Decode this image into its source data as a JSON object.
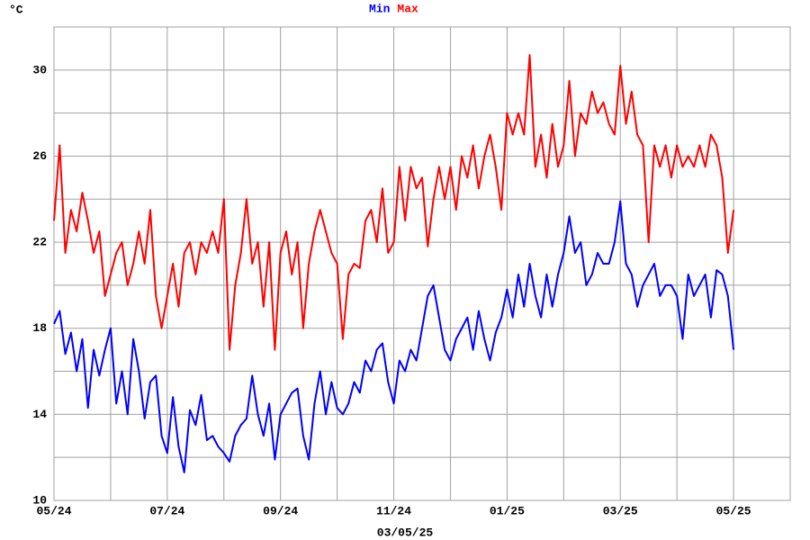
{
  "chart_data": {
    "type": "line",
    "y_label": "°C",
    "footer": "03/05/25",
    "x": [
      0,
      0.1,
      0.2,
      0.3,
      0.4,
      0.5,
      0.6,
      0.7,
      0.8,
      0.9,
      1,
      1.1,
      1.2,
      1.3,
      1.4,
      1.5,
      1.6,
      1.7,
      1.8,
      1.9,
      2,
      2.1,
      2.2,
      2.3,
      2.4,
      2.5,
      2.6,
      2.7,
      2.8,
      2.9,
      3,
      3.1,
      3.2,
      3.3,
      3.4,
      3.5,
      3.6,
      3.7,
      3.8,
      3.9,
      4,
      4.1,
      4.2,
      4.3,
      4.4,
      4.5,
      4.6,
      4.7,
      4.8,
      4.9,
      5,
      5.1,
      5.2,
      5.3,
      5.4,
      5.5,
      5.6,
      5.7,
      5.8,
      5.9,
      6,
      6.1,
      6.2,
      6.3,
      6.4,
      6.5,
      6.6,
      6.7,
      6.8,
      6.9,
      7,
      7.1,
      7.2,
      7.3,
      7.4,
      7.5,
      7.6,
      7.7,
      7.8,
      7.9,
      8,
      8.1,
      8.2,
      8.3,
      8.4,
      8.5,
      8.6,
      8.7,
      8.8,
      8.9,
      9,
      9.1,
      9.2,
      9.3,
      9.4,
      9.5,
      9.6,
      9.7,
      9.8,
      9.9,
      10,
      10.1,
      10.2,
      10.3,
      10.4,
      10.5,
      10.6,
      10.7,
      10.8,
      10.9,
      11,
      11.1,
      11.2,
      11.3,
      11.4,
      11.5,
      11.6,
      11.7,
      11.8,
      11.9,
      12
    ],
    "series": [
      {
        "name": "Min",
        "color": "#0000ff",
        "values": [
          18.2,
          18.8,
          16.8,
          17.8,
          16.0,
          17.5,
          14.3,
          17.0,
          15.8,
          17.0,
          18.0,
          14.5,
          16.0,
          14.0,
          17.5,
          16.0,
          13.8,
          15.5,
          15.8,
          13.0,
          12.2,
          14.8,
          12.5,
          11.3,
          14.2,
          13.5,
          14.9,
          12.8,
          13.0,
          12.5,
          12.2,
          11.8,
          13.0,
          13.5,
          13.8,
          15.8,
          14.0,
          13.0,
          14.5,
          11.9,
          14.0,
          14.5,
          15.0,
          15.2,
          13.0,
          11.9,
          14.5,
          16.0,
          14.0,
          15.5,
          14.3,
          14.0,
          14.5,
          15.5,
          15.0,
          16.5,
          16.0,
          17.0,
          17.3,
          15.5,
          14.5,
          16.5,
          16.0,
          17.0,
          16.5,
          18.0,
          19.5,
          20.0,
          18.5,
          17.0,
          16.5,
          17.5,
          18.0,
          18.5,
          17.0,
          18.8,
          17.5,
          16.5,
          17.8,
          18.5,
          19.8,
          18.5,
          20.5,
          19.0,
          21.0,
          19.5,
          18.5,
          20.5,
          19.0,
          20.5,
          21.5,
          23.2,
          21.5,
          22.0,
          20.0,
          20.5,
          21.5,
          21.0,
          21.0,
          22.0,
          23.9,
          21.0,
          20.5,
          19.0,
          20.0,
          20.5,
          21.0,
          19.5,
          20.0,
          20.0,
          19.5,
          17.5,
          20.5,
          19.5,
          20.0,
          20.5,
          18.5,
          20.7,
          20.5,
          19.5,
          17.0
        ]
      },
      {
        "name": "Max",
        "color": "#ff0000",
        "values": [
          23.0,
          26.5,
          21.5,
          23.5,
          22.5,
          24.3,
          23.0,
          21.5,
          22.5,
          19.5,
          20.5,
          21.5,
          22.0,
          20.0,
          21.0,
          22.5,
          21.0,
          23.5,
          19.5,
          18.0,
          19.5,
          21.0,
          19.0,
          21.5,
          22.0,
          20.5,
          22.0,
          21.5,
          22.5,
          21.5,
          24.0,
          17.0,
          20.0,
          21.5,
          24.0,
          21.0,
          22.0,
          19.0,
          22.0,
          17.0,
          21.5,
          22.5,
          20.5,
          22.0,
          18.0,
          21.0,
          22.5,
          23.5,
          22.5,
          21.5,
          21.0,
          17.5,
          20.5,
          21.0,
          20.8,
          23.0,
          23.5,
          22.0,
          24.5,
          21.5,
          22.0,
          25.5,
          23.0,
          25.5,
          24.5,
          25.0,
          21.8,
          24.0,
          25.5,
          24.0,
          25.5,
          23.5,
          26.0,
          25.0,
          26.5,
          24.5,
          26.0,
          27.0,
          25.5,
          23.5,
          28.0,
          27.0,
          28.0,
          27.0,
          30.7,
          25.5,
          27.0,
          25.0,
          27.5,
          25.5,
          26.5,
          29.5,
          26.0,
          28.0,
          27.5,
          29.0,
          28.0,
          28.5,
          27.5,
          27.0,
          30.2,
          27.5,
          29.0,
          27.0,
          26.5,
          22.0,
          26.5,
          25.5,
          26.5,
          25.0,
          26.5,
          25.5,
          26.0,
          25.5,
          26.5,
          25.5,
          27.0,
          26.5,
          25.0,
          21.5,
          23.5
        ]
      }
    ],
    "xlim": [
      0,
      13
    ],
    "xticks": [
      {
        "value": 0,
        "label": "05/24"
      },
      {
        "value": 2,
        "label": "07/24"
      },
      {
        "value": 4,
        "label": "09/24"
      },
      {
        "value": 6,
        "label": "11/24"
      },
      {
        "value": 8,
        "label": "01/25"
      },
      {
        "value": 10,
        "label": "03/25"
      },
      {
        "value": 12,
        "label": "05/25"
      }
    ],
    "xminor": [
      1,
      3,
      5,
      7,
      9,
      11
    ],
    "ylim": [
      10,
      32
    ],
    "yticks": [
      10,
      14,
      18,
      22,
      26,
      30
    ],
    "yminor": [
      12,
      16,
      20,
      24,
      28
    ],
    "grid": true
  }
}
